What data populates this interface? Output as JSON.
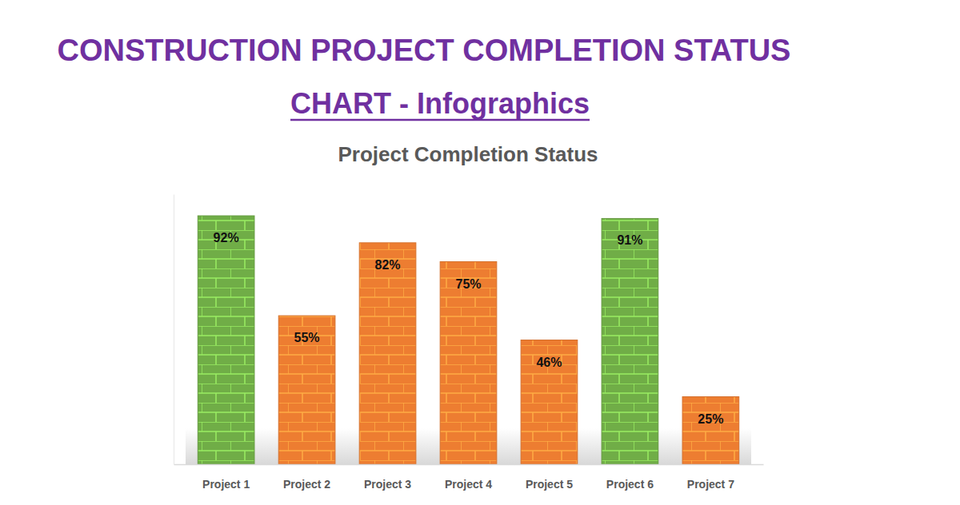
{
  "header": {
    "title": "CONSTRUCTION PROJECT COMPLETION STATUS",
    "subtitle": "CHART - Infographics"
  },
  "chart_data": {
    "type": "bar",
    "title": "Project Completion Status",
    "categories": [
      "Project 1",
      "Project 2",
      "Project 3",
      "Project 4",
      "Project 5",
      "Project 6",
      "Project 7"
    ],
    "values": [
      92,
      55,
      82,
      75,
      46,
      91,
      25
    ],
    "value_labels": [
      "92%",
      "55%",
      "82%",
      "75%",
      "46%",
      "91%",
      "25%"
    ],
    "colors": [
      "#70ad47",
      "#ed7d31",
      "#ed7d31",
      "#ed7d31",
      "#ed7d31",
      "#70ad47",
      "#ed7d31"
    ],
    "ylim": [
      0,
      100
    ],
    "data_labels": true,
    "grid": false,
    "tick_labels": "x"
  }
}
